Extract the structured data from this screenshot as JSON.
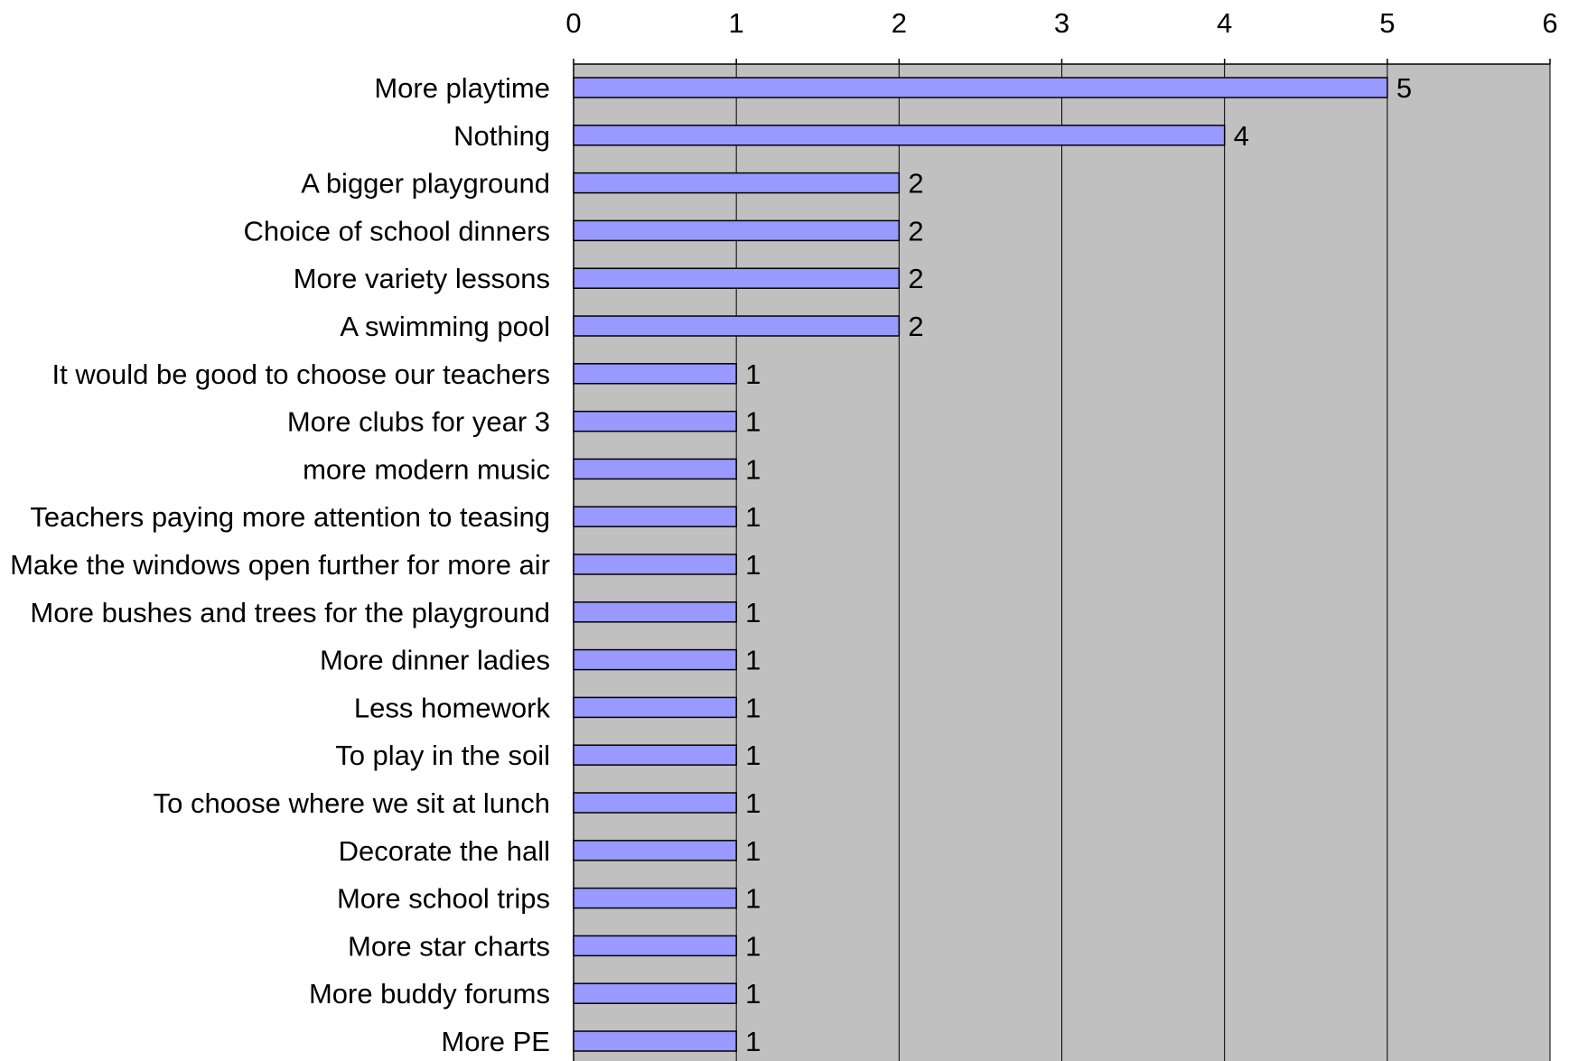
{
  "chart_data": {
    "type": "bar",
    "orientation": "horizontal",
    "categories": [
      "More playtime",
      "Nothing",
      "A bigger playground",
      "Choice of school dinners",
      "More variety lessons",
      "A swimming pool",
      "It would be good to choose our teachers",
      "More clubs for year 3",
      "more modern music",
      "Teachers paying more attention to teasing",
      "Make the windows open further for more air",
      "More bushes and trees for the playground",
      "More dinner ladies",
      "Less homework",
      "To play in the soil",
      "To choose where we sit at lunch",
      "Decorate the hall",
      "More school trips",
      "More star charts",
      "More buddy forums",
      "More PE"
    ],
    "values": [
      5,
      4,
      2,
      2,
      2,
      2,
      1,
      1,
      1,
      1,
      1,
      1,
      1,
      1,
      1,
      1,
      1,
      1,
      1,
      1,
      1
    ],
    "xlim": [
      0,
      6
    ],
    "x_ticks": [
      "0",
      "1",
      "2",
      "3",
      "4",
      "5",
      "6"
    ],
    "x_axis_position": "top",
    "data_labels": true,
    "grid": "vertical",
    "legend": "none",
    "title": "",
    "xlabel": "",
    "ylabel": "",
    "colors": {
      "bar_fill": "#9999ff",
      "bar_stroke": "#000000",
      "plot_background": "#c0c0c0",
      "grid_line": "#000000",
      "text": "#000000"
    }
  }
}
